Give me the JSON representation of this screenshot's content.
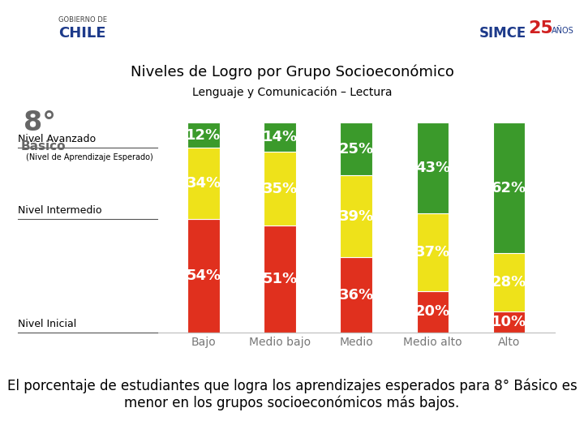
{
  "chart_data": {
    "type": "bar",
    "stacked": true,
    "data_labels": true,
    "tick_labels": "x",
    "title": "Niveles de Logro por Grupo Socioeconómico",
    "subtitle": "Lenguaje y Comunicación – Lectura",
    "grade": "8°",
    "grade_label": "Básico",
    "annotations": [
      "(Nivel de Aprendizaje Esperado)"
    ],
    "footnote": "El porcentaje de estudiantes que logra los aprendizajes esperados para 8° Básico es menor en los grupos socioeconómicos más bajos.",
    "logos": {
      "left_top": "GOBIERNO DE",
      "left": "CHILE",
      "right": "SIMCE",
      "right_number": "25",
      "right_small": "AÑOS"
    },
    "categories": [
      "Bajo",
      "Medio bajo",
      "Medio",
      "Medio alto",
      "Alto"
    ],
    "ylim": [
      0,
      100
    ],
    "yticks": [],
    "series": [
      {
        "name": "Nivel Inicial",
        "color": "#e0301e",
        "values": [
          54,
          51,
          36,
          20,
          10
        ],
        "value_labels": [
          "54%",
          "51%",
          "36%",
          "20%",
          "10%"
        ]
      },
      {
        "name": "Nivel Intermedio",
        "color": "#eee21a",
        "values": [
          34,
          35,
          39,
          37,
          28
        ],
        "value_labels": [
          "34%",
          "35%",
          "39%",
          "37%",
          "28%"
        ]
      },
      {
        "name": "Nivel Avanzado",
        "color": "#3b9a2b",
        "values": [
          12,
          14,
          25,
          43,
          62
        ],
        "value_labels": [
          "12%",
          "14%",
          "25%",
          "43%",
          "62%"
        ]
      }
    ]
  }
}
